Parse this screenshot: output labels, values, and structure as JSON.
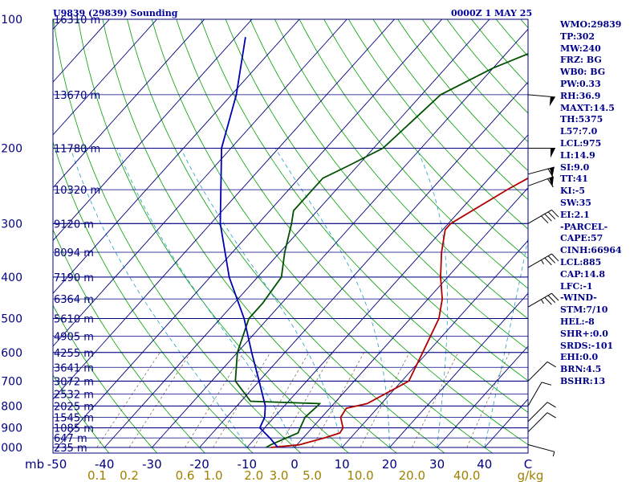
{
  "header": {
    "station_title": "U9839 (29839) Sounding",
    "time_title": "0000Z  1 MAY 25"
  },
  "indices": [
    "WMO:29839",
    "TP:302",
    "MW:240",
    "FRZ: BG",
    "WB0: BG",
    "PW:0.33",
    "RH:36.9",
    "MAXT:14.5",
    "TH:5375",
    "L57:7.0",
    "LCL:975",
    "LI:14.9",
    "SI:9.0",
    "TT:41",
    "KI:-5",
    "SW:35",
    "EI:2.1",
    "-PARCEL-",
    "CAPE:57",
    "CINH:66964",
    "LCL:885",
    "CAP:14.8",
    "LFC:-1",
    "-WIND-",
    "STM:7/10",
    "HEL:-8",
    "SHR+:0.0",
    "SRDS:-101",
    "EHI:0.0",
    "BRN:4.5",
    "BSHR:13"
  ],
  "colors": {
    "frame": "#000080",
    "isobar": "#000080",
    "isotherm": "#000080",
    "dry_adiabat": "#00a000",
    "moist_adiabat": "#20a0c0",
    "mixing_ratio": "#806040",
    "temperature": "#b00000",
    "dewpoint": "#005000",
    "parcel": "#0000b0",
    "wind": "#000000",
    "label": "#000080",
    "mixing_label": "#a08000"
  },
  "chart_data": {
    "type": "line",
    "subtype": "skew-T log-P sounding",
    "y_axis": {
      "label": "mb",
      "scale": "log",
      "range": [
        1000,
        100
      ],
      "ticks": [
        "100",
        "200",
        "300",
        "400",
        "500",
        "600",
        "700",
        "800",
        "900",
        "1000"
      ]
    },
    "x_axis": {
      "unit": "C",
      "range": [
        -50,
        50
      ],
      "ticks": [
        "-50",
        "-40",
        "-30",
        "-20",
        "-10",
        "0",
        "10",
        "20",
        "30",
        "40"
      ],
      "unit_label": "C"
    },
    "mixing_ratio_axis": {
      "unit": "g/kg",
      "ticks": [
        "0.1",
        "0.2",
        "0.6",
        "1.0",
        "2.0",
        "3.0",
        "5.0",
        "10.0",
        "20.0",
        "40.0"
      ]
    },
    "height_labels": [
      {
        "p": 100,
        "text": "16310 m"
      },
      {
        "p": 150,
        "text": "13670 m"
      },
      {
        "p": 200,
        "text": "11780 m"
      },
      {
        "p": 250,
        "text": "10320 m"
      },
      {
        "p": 300,
        "text": "9120 m"
      },
      {
        "p": 350,
        "text": "8094 m"
      },
      {
        "p": 400,
        "text": "7190 m"
      },
      {
        "p": 450,
        "text": "6364 m"
      },
      {
        "p": 500,
        "text": "5610 m"
      },
      {
        "p": 550,
        "text": "4905 m"
      },
      {
        "p": 600,
        "text": "4255 m"
      },
      {
        "p": 650,
        "text": "3641 m"
      },
      {
        "p": 700,
        "text": "3072 m"
      },
      {
        "p": 750,
        "text": "2532 m"
      },
      {
        "p": 800,
        "text": "2025 m"
      },
      {
        "p": 850,
        "text": "1545 m"
      },
      {
        "p": 900,
        "text": "1085 m"
      },
      {
        "p": 950,
        "text": "647 m"
      },
      {
        "p": 1000,
        "text": "235 m"
      }
    ],
    "series": [
      {
        "name": "temperature",
        "points": [
          [
            1000,
            -5
          ],
          [
            986,
            0.5
          ],
          [
            950,
            4.5
          ],
          [
            925,
            6.8
          ],
          [
            900,
            6.5
          ],
          [
            850,
            4
          ],
          [
            810,
            3.5
          ],
          [
            790,
            7
          ],
          [
            700,
            11.5
          ],
          [
            600,
            9
          ],
          [
            500,
            6
          ],
          [
            450,
            3
          ],
          [
            400,
            -1.5
          ],
          [
            350,
            -6
          ],
          [
            310,
            -9.5
          ],
          [
            300,
            -9.5
          ],
          [
            250,
            -4
          ],
          [
            200,
            4
          ],
          [
            150,
            18
          ],
          [
            130,
            26
          ],
          [
            100,
            46
          ]
        ]
      },
      {
        "name": "dewpoint",
        "points": [
          [
            1000,
            -6
          ],
          [
            986,
            -5.5
          ],
          [
            950,
            -3.5
          ],
          [
            925,
            -2
          ],
          [
            900,
            -2.5
          ],
          [
            850,
            -3.5
          ],
          [
            800,
            -3
          ],
          [
            790,
            -3
          ],
          [
            780,
            -18
          ],
          [
            700,
            -25
          ],
          [
            600,
            -30
          ],
          [
            500,
            -34
          ],
          [
            460,
            -34
          ],
          [
            400,
            -35
          ],
          [
            350,
            -39
          ],
          [
            300,
            -43
          ],
          [
            280,
            -45
          ],
          [
            235,
            -45
          ],
          [
            220,
            -42
          ],
          [
            200,
            -38
          ],
          [
            150,
            -36
          ],
          [
            130,
            -30
          ],
          [
            100,
            -14
          ]
        ]
      },
      {
        "name": "parcel",
        "points": [
          [
            1000,
            -3.5
          ],
          [
            950,
            -7
          ],
          [
            900,
            -11
          ],
          [
            850,
            -12
          ],
          [
            800,
            -14
          ],
          [
            700,
            -20
          ],
          [
            600,
            -27
          ],
          [
            500,
            -35
          ],
          [
            400,
            -46
          ],
          [
            300,
            -58
          ],
          [
            200,
            -72
          ],
          [
            150,
            -79
          ],
          [
            110,
            -88
          ]
        ]
      }
    ],
    "wind_barbs": [
      {
        "p": 985,
        "dir": 285,
        "kt": 5
      },
      {
        "p": 920,
        "dir": 225,
        "kt": 10
      },
      {
        "p": 870,
        "dir": 225,
        "kt": 10
      },
      {
        "p": 800,
        "dir": 210,
        "kt": 10
      },
      {
        "p": 700,
        "dir": 225,
        "kt": 10
      },
      {
        "p": 470,
        "dir": 240,
        "kt": 35
      },
      {
        "p": 380,
        "dir": 240,
        "kt": 35
      },
      {
        "p": 300,
        "dir": 240,
        "kt": 40
      },
      {
        "p": 245,
        "dir": 250,
        "kt": 60
      },
      {
        "p": 230,
        "dir": 255,
        "kt": 60
      },
      {
        "p": 200,
        "dir": 270,
        "kt": 50
      },
      {
        "p": 150,
        "dir": 275,
        "kt": 50
      }
    ],
    "grid": true
  }
}
